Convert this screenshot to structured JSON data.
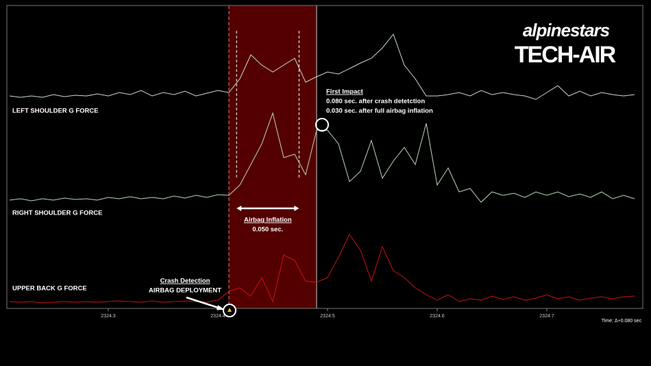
{
  "chart_data": {
    "type": "line",
    "x": [
      2324.21,
      2324.22,
      2324.23,
      2324.24,
      2324.25,
      2324.26,
      2324.27,
      2324.28,
      2324.29,
      2324.3,
      2324.31,
      2324.32,
      2324.33,
      2324.34,
      2324.35,
      2324.36,
      2324.37,
      2324.38,
      2324.39,
      2324.4,
      2324.41,
      2324.42,
      2324.43,
      2324.44,
      2324.45,
      2324.46,
      2324.47,
      2324.48,
      2324.49,
      2324.5,
      2324.51,
      2324.52,
      2324.53,
      2324.54,
      2324.55,
      2324.56,
      2324.57,
      2324.58,
      2324.59,
      2324.6,
      2324.61,
      2324.62,
      2324.63,
      2324.64,
      2324.65,
      2324.66,
      2324.67,
      2324.68,
      2324.69,
      2324.7,
      2324.71,
      2324.72,
      2324.73,
      2324.74,
      2324.75,
      2324.76,
      2324.77,
      2324.78
    ],
    "series": [
      {
        "name": "LEFT SHOULDER G FORCE",
        "color": "#c8dcc8",
        "values": [
          310,
          308,
          310,
          308,
          312,
          309,
          311,
          310,
          313,
          310,
          315,
          312,
          318,
          310,
          315,
          312,
          317,
          310,
          314,
          318,
          315,
          335,
          370,
          355,
          345,
          355,
          365,
          330,
          338,
          345,
          342,
          350,
          358,
          365,
          380,
          400,
          355,
          335,
          310,
          310,
          312,
          315,
          310,
          318,
          312,
          315,
          312,
          310,
          305,
          315,
          325,
          310,
          317,
          310,
          315,
          312,
          310,
          312
        ]
      },
      {
        "name": "RIGHT  SHOULDER G FORCE",
        "color": "#b8d8b8",
        "values": [
          158,
          160,
          157,
          160,
          158,
          161,
          159,
          160,
          158,
          162,
          160,
          163,
          160,
          162,
          160,
          164,
          161,
          165,
          162,
          166,
          165,
          180,
          210,
          240,
          285,
          220,
          225,
          195,
          260,
          260,
          240,
          185,
          200,
          245,
          190,
          215,
          235,
          210,
          270,
          180,
          205,
          170,
          175,
          155,
          170,
          165,
          168,
          162,
          170,
          165,
          170,
          163,
          167,
          162,
          170,
          160,
          165,
          160
        ]
      },
      {
        "name": "UPPER BACK G FORCE",
        "color": "#cc1111",
        "values": [
          10,
          9,
          10,
          8,
          9,
          10,
          9,
          10,
          9,
          10,
          11,
          10,
          9,
          11,
          9,
          10,
          11,
          10,
          9,
          12,
          25,
          30,
          18,
          45,
          10,
          78,
          70,
          40,
          38,
          45,
          75,
          108,
          85,
          40,
          90,
          55,
          45,
          30,
          20,
          12,
          20,
          10,
          14,
          12,
          18,
          13,
          17,
          12,
          15,
          20,
          14,
          17,
          12,
          15,
          17,
          14,
          17,
          18
        ]
      }
    ],
    "xlim": [
      2324.2075,
      2324.7875
    ],
    "xticks": [
      2324.3,
      2324.4,
      2324.5,
      2324.6,
      2324.7
    ],
    "ylim": [
      0,
      442
    ],
    "highlight_range": [
      2324.41,
      2324.49
    ],
    "inflation_range": [
      2324.417,
      2324.474
    ],
    "time_label": "Time: Δ+0.080 sec",
    "annotations": {
      "first_impact": {
        "title": "First Impact",
        "lines": [
          "0.080 sec. after crash detetction",
          "0.030 sec. after full airbag inflation"
        ]
      },
      "airbag_inflation": {
        "title": "Airbag Inflation",
        "duration": "0.050 sec."
      },
      "crash_detection": {
        "title": "Crash Detection",
        "subtitle": "AIRBAG DEPLOYMENT"
      }
    },
    "logo": {
      "brand": "alpinestars",
      "product": "TECH-AIR"
    }
  }
}
